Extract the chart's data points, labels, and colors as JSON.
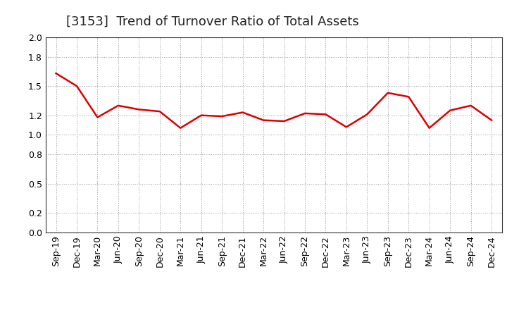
{
  "title": "[3153]  Trend of Turnover Ratio of Total Assets",
  "labels": [
    "Sep-19",
    "Dec-19",
    "Mar-20",
    "Jun-20",
    "Sep-20",
    "Dec-20",
    "Mar-21",
    "Jun-21",
    "Sep-21",
    "Dec-21",
    "Mar-22",
    "Jun-22",
    "Sep-22",
    "Dec-22",
    "Mar-23",
    "Jun-23",
    "Sep-23",
    "Dec-23",
    "Mar-24",
    "Jun-24",
    "Sep-24",
    "Dec-24"
  ],
  "values": [
    1.63,
    1.5,
    1.18,
    1.3,
    1.26,
    1.24,
    1.07,
    1.2,
    1.19,
    1.23,
    1.15,
    1.14,
    1.22,
    1.21,
    1.08,
    1.21,
    1.43,
    1.39,
    1.07,
    1.25,
    1.3,
    1.15
  ],
  "line_color": "#dd0000",
  "background_color": "#ffffff",
  "grid_color": "#999999",
  "ylim": [
    0.0,
    2.0
  ],
  "yticks": [
    0.0,
    0.2,
    0.5,
    0.8,
    1.0,
    1.2,
    1.5,
    1.8,
    2.0
  ],
  "title_fontsize": 13,
  "tick_fontsize": 9,
  "line_width": 1.8
}
